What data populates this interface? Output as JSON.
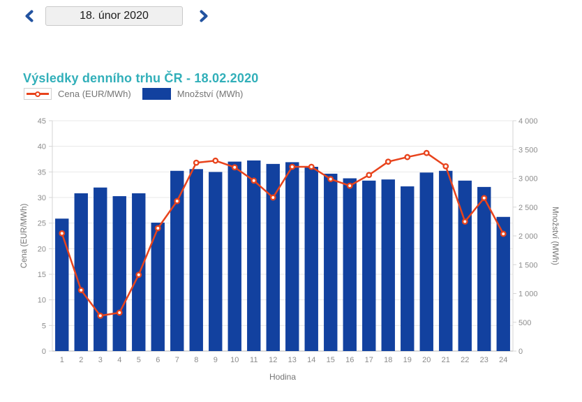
{
  "nav": {
    "prev_icon": "chevron-left",
    "next_icon": "chevron-right",
    "date_label": "18. únor 2020"
  },
  "title": "Výsledky denního trhu ČR - 18.02.2020",
  "legend": {
    "items": [
      {
        "label": "Cena (EUR/MWh)",
        "series": "price",
        "swatch": "line-with-marker"
      },
      {
        "label": "Množství (MWh)",
        "series": "volume",
        "swatch": "solid-bar"
      }
    ]
  },
  "colors": {
    "bar": "#12419f",
    "line": "#e8431c",
    "marker_fill": "#ffffff",
    "title": "#31afb9",
    "nav_arrow": "#2253a0",
    "grid": "#e8e8e8",
    "axis_line": "#d5d5d5",
    "baseline": "#b3b3b3",
    "tick_label": "#8c8c8c",
    "axis_title": "#757575",
    "legend_label": "#757575"
  },
  "chart_data": {
    "type": "combo",
    "title": "Výsledky denního trhu ČR - 18.02.2020",
    "x": [
      1,
      2,
      3,
      4,
      5,
      6,
      7,
      8,
      9,
      10,
      11,
      12,
      13,
      14,
      15,
      16,
      17,
      18,
      19,
      20,
      21,
      22,
      23,
      24
    ],
    "xlabel": "Hodina",
    "grid": true,
    "legend_position": "top-left",
    "axes": {
      "left": {
        "label": "Cena (EUR/MWh)",
        "min": 0,
        "max": 45,
        "tick_step": 5
      },
      "right": {
        "label": "Množství (MWh)",
        "min": 0,
        "max": 4000,
        "tick_step": 500,
        "tick_format": "space_thousands"
      }
    },
    "series": [
      {
        "name": "Cena (EUR/MWh)",
        "type": "line",
        "axis": "left",
        "marker": "open-circle",
        "values": [
          23.0,
          11.9,
          6.9,
          7.5,
          14.9,
          24.0,
          29.3,
          36.8,
          37.2,
          35.9,
          33.3,
          30.0,
          36.0,
          36.0,
          33.6,
          32.3,
          34.4,
          37.0,
          37.9,
          38.7,
          36.1,
          25.3,
          29.9,
          22.9
        ]
      },
      {
        "name": "Množství (MWh)",
        "type": "bar",
        "axis": "right",
        "values": [
          2300,
          2740,
          2840,
          2690,
          2740,
          2230,
          3130,
          3160,
          3110,
          3290,
          3310,
          3250,
          3280,
          3200,
          3080,
          3000,
          2960,
          2980,
          2860,
          3100,
          3130,
          2960,
          2850,
          2330
        ]
      }
    ]
  }
}
